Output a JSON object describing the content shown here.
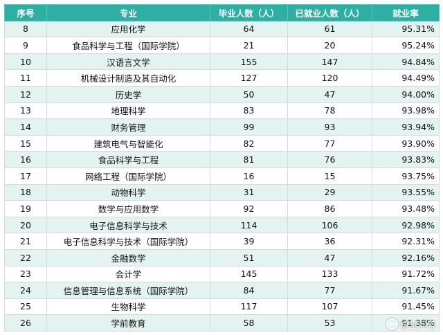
{
  "table": {
    "headers": [
      "序号",
      "专业",
      "毕业人数（人）",
      "已就业人数（人）",
      "就业率"
    ],
    "rows": [
      [
        "8",
        "应用化学",
        "64",
        "61",
        "95.31%"
      ],
      [
        "9",
        "食品科学与工程（国际学院）",
        "21",
        "20",
        "95.24%"
      ],
      [
        "10",
        "汉语言文学",
        "155",
        "147",
        "94.84%"
      ],
      [
        "11",
        "机械设计制造及其自动化",
        "127",
        "120",
        "94.49%"
      ],
      [
        "12",
        "历史学",
        "50",
        "47",
        "94.00%"
      ],
      [
        "13",
        "地理科学",
        "83",
        "78",
        "93.98%"
      ],
      [
        "14",
        "财务管理",
        "99",
        "93",
        "93.94%"
      ],
      [
        "15",
        "建筑电气与智能化",
        "82",
        "77",
        "93.90%"
      ],
      [
        "16",
        "食品科学与工程",
        "81",
        "76",
        "93.83%"
      ],
      [
        "17",
        "网络工程（国际学院）",
        "16",
        "15",
        "93.75%"
      ],
      [
        "18",
        "动物科学",
        "31",
        "29",
        "93.55%"
      ],
      [
        "19",
        "数学与应用数学",
        "92",
        "86",
        "93.48%"
      ],
      [
        "20",
        "电子信息科学与技术",
        "114",
        "106",
        "92.98%"
      ],
      [
        "21",
        "电子信息科学与技术（国际学院）",
        "39",
        "36",
        "92.31%"
      ],
      [
        "22",
        "金融数学",
        "51",
        "47",
        "92.16%"
      ],
      [
        "23",
        "会计学",
        "145",
        "133",
        "91.72%"
      ],
      [
        "24",
        "信息管理与信息系统（国际学院）",
        "84",
        "77",
        "91.67%"
      ],
      [
        "25",
        "生物科学",
        "117",
        "107",
        "91.45%"
      ],
      [
        "26",
        "学前教育",
        "58",
        "53",
        "91.38%"
      ]
    ]
  },
  "watermark": {
    "text": "悟空问答",
    "icon": "chat-bubble-icon"
  },
  "colors": {
    "header_bg": "#2db0a3",
    "row_alt_bg": "#e3f3f1"
  }
}
